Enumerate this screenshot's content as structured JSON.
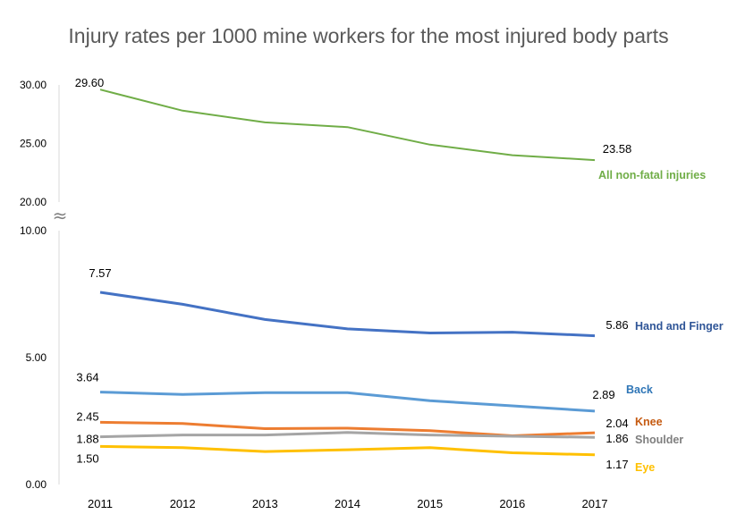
{
  "chart_data": {
    "type": "line",
    "title": "Injury rates per 1000 mine workers for the most injured body parts",
    "xlabel": "",
    "ylabel": "",
    "categories": [
      "2011",
      "2012",
      "2013",
      "2014",
      "2015",
      "2016",
      "2017"
    ],
    "axis_break": {
      "between": [
        10,
        20
      ],
      "symbol": "≈"
    },
    "yticks": {
      "upper": [
        "20.00",
        "25.00",
        "30.00"
      ],
      "lower": [
        "0.00",
        "5.00",
        "10.00"
      ]
    },
    "ylim_upper": [
      20,
      30
    ],
    "ylim_lower": [
      0,
      10
    ],
    "grid": false,
    "legend": "none (series labeled at line ends)",
    "series": [
      {
        "name": "All non-fatal injuries",
        "color": "#70AD47",
        "values": [
          29.6,
          27.8,
          26.8,
          26.4,
          24.9,
          24.0,
          23.58
        ],
        "start_label": "29.60",
        "end_label": "23.58"
      },
      {
        "name": "Hand and Finger",
        "color": "#4472C4",
        "values": [
          7.57,
          7.1,
          6.5,
          6.13,
          5.97,
          6.0,
          5.86
        ],
        "start_label": "7.57",
        "end_label": "5.86"
      },
      {
        "name": "Back",
        "color": "#5B9BD5",
        "values": [
          3.64,
          3.55,
          3.62,
          3.62,
          3.3,
          3.1,
          2.89
        ],
        "start_label": "3.64",
        "end_label": "2.89"
      },
      {
        "name": "Knee",
        "color": "#ED7D31",
        "values": [
          2.45,
          2.4,
          2.2,
          2.22,
          2.12,
          1.92,
          2.04
        ],
        "start_label": "2.45",
        "end_label": "2.04"
      },
      {
        "name": "Shoulder",
        "color": "#A5A5A5",
        "values": [
          1.88,
          1.95,
          1.95,
          2.05,
          1.95,
          1.9,
          1.86
        ],
        "start_label": "1.88",
        "end_label": "1.86"
      },
      {
        "name": "Eye",
        "color": "#FFC000",
        "values": [
          1.5,
          1.45,
          1.3,
          1.37,
          1.45,
          1.25,
          1.17
        ],
        "start_label": "1.50",
        "end_label": "1.17"
      }
    ]
  }
}
